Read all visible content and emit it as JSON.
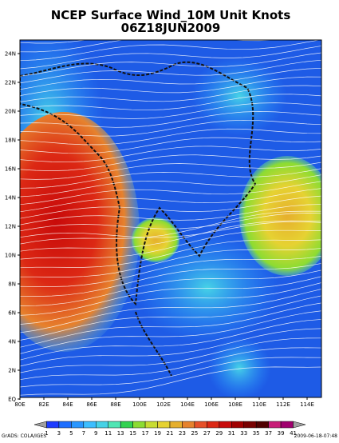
{
  "header": {
    "title": "NCEP Surface Wind_10M Unit Knots",
    "subtitle": "06Z18JUN2009"
  },
  "map": {
    "lat_labels": [
      "24N",
      "22N",
      "20N",
      "18N",
      "16N",
      "14N",
      "12N",
      "10N",
      "8N",
      "6N",
      "4N",
      "2N",
      "EQ"
    ],
    "lon_labels": [
      "80E",
      "82E",
      "84E",
      "86E",
      "88E",
      "100E",
      "102E",
      "104E",
      "106E",
      "108E",
      "110E",
      "112E",
      "114E"
    ]
  },
  "colorbar": {
    "colors": [
      "#a0a0a0",
      "#1e3cff",
      "#1e6eff",
      "#2896ff",
      "#3cbeff",
      "#46d2e6",
      "#50e6b4",
      "#32d250",
      "#8cdc32",
      "#c8dc32",
      "#e6d232",
      "#e6af2d",
      "#e6822d",
      "#e65028",
      "#dc2814",
      "#c80a0a",
      "#a00000",
      "#780000",
      "#500000",
      "#c81e78",
      "#a0006e",
      "#a0a0a0"
    ],
    "labels": [
      "1",
      "3",
      "5",
      "7",
      "9",
      "11",
      "13",
      "15",
      "17",
      "19",
      "21",
      "23",
      "25",
      "27",
      "29",
      "31",
      "33",
      "35",
      "37",
      "39",
      "41"
    ]
  },
  "footer": {
    "left": "GrADS: COLA/IGES",
    "right": "2009-06-18-07:48"
  }
}
